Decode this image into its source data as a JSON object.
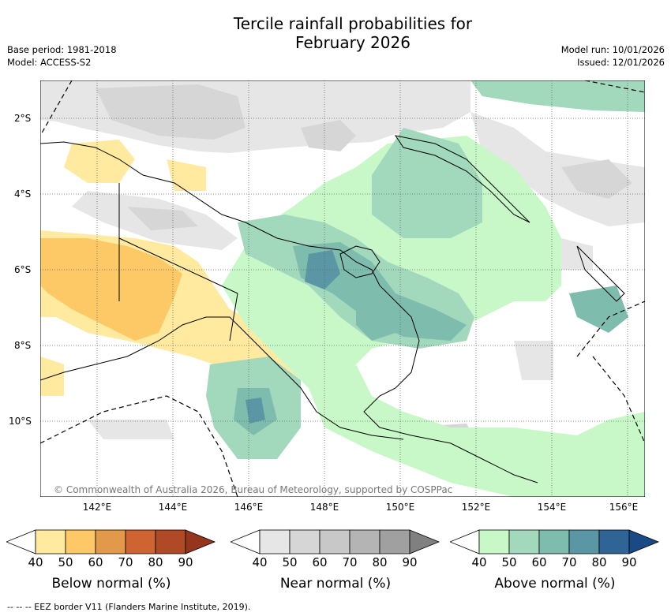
{
  "title_line1": "Tercile rainfall probabilities for",
  "title_line2": "February 2026",
  "base_period": "Base period: 1981-2018",
  "model": "Model: ACCESS-S2",
  "model_run": "Model run: 10/01/2026",
  "issued": "Issued: 12/01/2026",
  "lat_labels": [
    "2°S",
    "4°S",
    "6°S",
    "8°S",
    "10°S"
  ],
  "lon_labels": [
    "142°E",
    "144°E",
    "146°E",
    "148°E",
    "150°E",
    "152°E",
    "154°E",
    "156°E"
  ],
  "credit": "© Commonwealth of Australia 2026, Bureau of Meteorology, supported by COSPPac",
  "colorbars": [
    {
      "label": "Below normal (%)",
      "ticks": [
        "40",
        "50",
        "60",
        "70",
        "80",
        "90"
      ],
      "colors": [
        "#ffffff",
        "#ffeaa0",
        "#fdc966",
        "#e29a4a",
        "#cd6432",
        "#b04a26",
        "#94351c"
      ]
    },
    {
      "label": "Near normal (%)",
      "ticks": [
        "40",
        "50",
        "60",
        "70",
        "80",
        "90"
      ],
      "colors": [
        "#ffffff",
        "#e6e6e6",
        "#d6d6d6",
        "#c8c8c8",
        "#b4b4b4",
        "#a0a0a0",
        "#808080"
      ]
    },
    {
      "label": "Above normal (%)",
      "ticks": [
        "40",
        "50",
        "60",
        "70",
        "80",
        "90"
      ],
      "colors": [
        "#ffffff",
        "#c8f8c8",
        "#a2d8bc",
        "#7ebcae",
        "#5a96a4",
        "#2f6496",
        "#1a4a86"
      ]
    }
  ],
  "footer": "--  --  -- EEZ border V11 (Flanders Marine Institute, 2019)."
}
